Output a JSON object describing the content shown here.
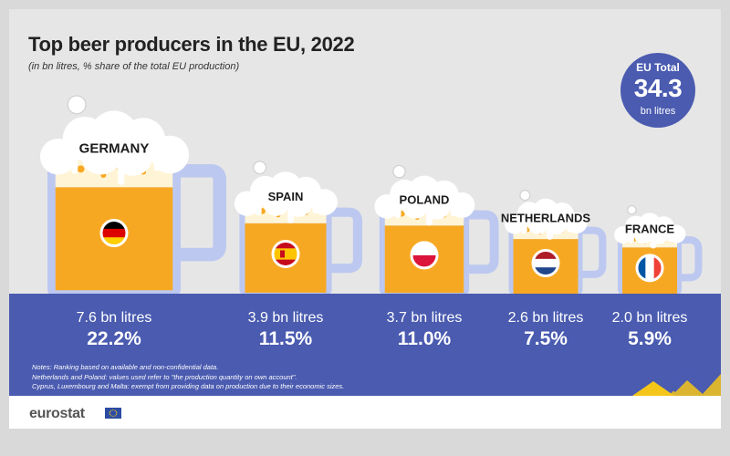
{
  "title": "Top beer producers in the EU, 2022",
  "subtitle": "(in bn litres, % share of the total EU production)",
  "eu_total": {
    "label": "EU Total",
    "value": "34.3",
    "unit": "bn litres"
  },
  "chart_data": {
    "type": "bar",
    "title": "Top beer producers in the EU, 2022",
    "subtitle": "(in bn litres, % share of the total EU production)",
    "categories": [
      "GERMANY",
      "SPAIN",
      "POLAND",
      "NETHERLANDS",
      "FRANCE"
    ],
    "values": [
      7.6,
      3.9,
      3.7,
      2.6,
      2.0
    ],
    "shares": [
      22.2,
      11.5,
      11.0,
      7.5,
      5.9
    ],
    "value_labels": [
      "7.6 bn litres",
      "3.9 bn litres",
      "3.7 bn litres",
      "2.6 bn litres",
      "2.0 bn litres"
    ],
    "share_labels": [
      "22.2%",
      "11.5%",
      "11.0%",
      "7.5%",
      "5.9%"
    ],
    "unit": "bn litres",
    "total": 34.3
  },
  "notes": [
    "Notes: Ranking based on available and non-confidential data.",
    "Netherlands and Poland: values used refer to \"the production quantity on own account\".",
    "Cyprus, Luxembourg and Malta: exempt from providing data on production due to their economic sizes."
  ],
  "flags": [
    "germany-flag",
    "spain-flag",
    "poland-flag",
    "netherlands-flag",
    "france-flag"
  ],
  "colors": {
    "band": "#4a5bb0",
    "beer": "#f7a823",
    "foam": "#fff4d6",
    "glass": "#bcc8f0",
    "accent_yellow": "#f5c61a"
  },
  "logo": "eurostat"
}
